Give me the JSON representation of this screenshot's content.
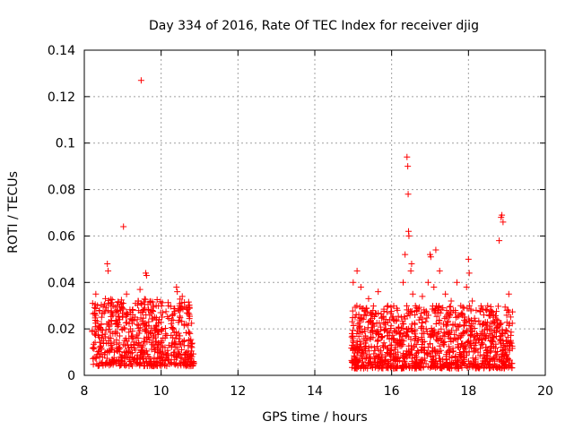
{
  "chart_data": {
    "type": "scatter",
    "title": "Day 334 of 2016, Rate Of TEC Index for receiver djig",
    "xlabel": "GPS time / hours",
    "ylabel": "ROTI / TECUs",
    "xlim": [
      8,
      20
    ],
    "ylim": [
      0,
      0.14
    ],
    "xticks": [
      8,
      10,
      12,
      14,
      16,
      18,
      20
    ],
    "yticks": [
      0,
      0.02,
      0.04,
      0.06,
      0.08,
      0.1,
      0.12,
      0.14
    ],
    "xtick_labels": [
      "8",
      "10",
      "12",
      "14",
      "16",
      "18",
      "20"
    ],
    "ytick_labels": [
      "0",
      "0.02",
      "0.04",
      "0.06",
      "0.08",
      "0.1",
      "0.12",
      "0.14"
    ],
    "grid": true,
    "marker": "+",
    "series": [
      {
        "name": "ROTI",
        "color": "#ff0000",
        "points": [
          [
            8.25,
            0.012
          ],
          [
            8.3,
            0.035
          ],
          [
            8.35,
            0.02
          ],
          [
            8.4,
            0.008
          ],
          [
            8.45,
            0.025
          ],
          [
            8.5,
            0.015
          ],
          [
            8.55,
            0.033
          ],
          [
            8.6,
            0.048
          ],
          [
            8.62,
            0.045
          ],
          [
            8.65,
            0.01
          ],
          [
            8.7,
            0.022
          ],
          [
            8.75,
            0.006
          ],
          [
            8.8,
            0.018
          ],
          [
            8.85,
            0.03
          ],
          [
            8.9,
            0.012
          ],
          [
            8.95,
            0.008
          ],
          [
            9.0,
            0.025
          ],
          [
            9.02,
            0.064
          ],
          [
            9.05,
            0.015
          ],
          [
            9.1,
            0.035
          ],
          [
            9.15,
            0.01
          ],
          [
            9.2,
            0.02
          ],
          [
            9.25,
            0.028
          ],
          [
            9.3,
            0.007
          ],
          [
            9.35,
            0.016
          ],
          [
            9.4,
            0.032
          ],
          [
            9.45,
            0.037
          ],
          [
            9.48,
            0.127
          ],
          [
            9.5,
            0.012
          ],
          [
            9.55,
            0.022
          ],
          [
            9.6,
            0.044
          ],
          [
            9.62,
            0.043
          ],
          [
            9.65,
            0.009
          ],
          [
            9.7,
            0.026
          ],
          [
            9.75,
            0.014
          ],
          [
            9.8,
            0.03
          ],
          [
            9.85,
            0.011
          ],
          [
            9.9,
            0.019
          ],
          [
            9.95,
            0.024
          ],
          [
            10.0,
            0.008
          ],
          [
            10.05,
            0.016
          ],
          [
            10.1,
            0.012
          ],
          [
            10.3,
            0.02
          ],
          [
            10.35,
            0.01
          ],
          [
            10.4,
            0.038
          ],
          [
            10.42,
            0.036
          ],
          [
            10.45,
            0.028
          ],
          [
            10.5,
            0.005
          ],
          [
            10.55,
            0.034
          ],
          [
            10.6,
            0.015
          ],
          [
            10.65,
            0.022
          ],
          [
            10.7,
            0.009
          ],
          [
            10.75,
            0.018
          ],
          [
            10.8,
            0.012
          ],
          [
            15.0,
            0.04
          ],
          [
            15.05,
            0.025
          ],
          [
            15.1,
            0.045
          ],
          [
            15.15,
            0.02
          ],
          [
            15.2,
            0.038
          ],
          [
            15.25,
            0.01
          ],
          [
            15.3,
            0.028
          ],
          [
            15.35,
            0.015
          ],
          [
            15.4,
            0.033
          ],
          [
            15.45,
            0.008
          ],
          [
            15.5,
            0.022
          ],
          [
            15.55,
            0.012
          ],
          [
            15.6,
            0.018
          ],
          [
            15.65,
            0.036
          ],
          [
            15.7,
            0.006
          ],
          [
            15.75,
            0.025
          ],
          [
            15.8,
            0.014
          ],
          [
            15.85,
            0.02
          ],
          [
            15.9,
            0.03
          ],
          [
            15.95,
            0.009
          ],
          [
            16.0,
            0.016
          ],
          [
            16.05,
            0.024
          ],
          [
            16.1,
            0.012
          ],
          [
            16.15,
            0.028
          ],
          [
            16.2,
            0.018
          ],
          [
            16.25,
            0.025
          ],
          [
            16.3,
            0.04
          ],
          [
            16.35,
            0.052
          ],
          [
            16.4,
            0.094
          ],
          [
            16.42,
            0.09
          ],
          [
            16.43,
            0.078
          ],
          [
            16.44,
            0.062
          ],
          [
            16.45,
            0.06
          ],
          [
            16.5,
            0.045
          ],
          [
            16.52,
            0.048
          ],
          [
            16.55,
            0.035
          ],
          [
            16.6,
            0.015
          ],
          [
            16.65,
            0.028
          ],
          [
            16.7,
            0.01
          ],
          [
            16.75,
            0.025
          ],
          [
            16.8,
            0.034
          ],
          [
            16.85,
            0.012
          ],
          [
            16.9,
            0.02
          ],
          [
            16.95,
            0.04
          ],
          [
            17.0,
            0.052
          ],
          [
            17.02,
            0.051
          ],
          [
            17.1,
            0.038
          ],
          [
            17.15,
            0.054
          ],
          [
            17.2,
            0.028
          ],
          [
            17.25,
            0.045
          ],
          [
            17.3,
            0.015
          ],
          [
            17.35,
            0.022
          ],
          [
            17.4,
            0.035
          ],
          [
            17.45,
            0.01
          ],
          [
            17.5,
            0.025
          ],
          [
            17.55,
            0.032
          ],
          [
            17.6,
            0.015
          ],
          [
            17.65,
            0.022
          ],
          [
            17.7,
            0.04
          ],
          [
            17.75,
            0.012
          ],
          [
            17.8,
            0.03
          ],
          [
            17.85,
            0.018
          ],
          [
            17.9,
            0.025
          ],
          [
            17.95,
            0.038
          ],
          [
            18.0,
            0.05
          ],
          [
            18.02,
            0.044
          ],
          [
            18.05,
            0.02
          ],
          [
            18.1,
            0.032
          ],
          [
            18.15,
            0.015
          ],
          [
            18.2,
            0.028
          ],
          [
            18.25,
            0.01
          ],
          [
            18.3,
            0.022
          ],
          [
            18.35,
            0.018
          ],
          [
            18.4,
            0.026
          ],
          [
            18.45,
            0.012
          ],
          [
            18.5,
            0.03
          ],
          [
            18.55,
            0.02
          ],
          [
            18.6,
            0.015
          ],
          [
            18.65,
            0.025
          ],
          [
            18.7,
            0.01
          ],
          [
            18.75,
            0.022
          ],
          [
            18.8,
            0.058
          ],
          [
            18.85,
            0.068
          ],
          [
            18.87,
            0.069
          ],
          [
            18.9,
            0.066
          ],
          [
            18.95,
            0.018
          ],
          [
            19.0,
            0.028
          ],
          [
            19.05,
            0.035
          ],
          [
            19.1,
            0.015
          ]
        ]
      }
    ],
    "clusters": [
      {
        "x_start": 8.2,
        "x_end": 10.85,
        "y_min": 0.004,
        "y_max": 0.033,
        "count": 620
      },
      {
        "x_start": 14.95,
        "x_end": 19.15,
        "y_min": 0.003,
        "y_max": 0.03,
        "count": 1050
      }
    ]
  }
}
